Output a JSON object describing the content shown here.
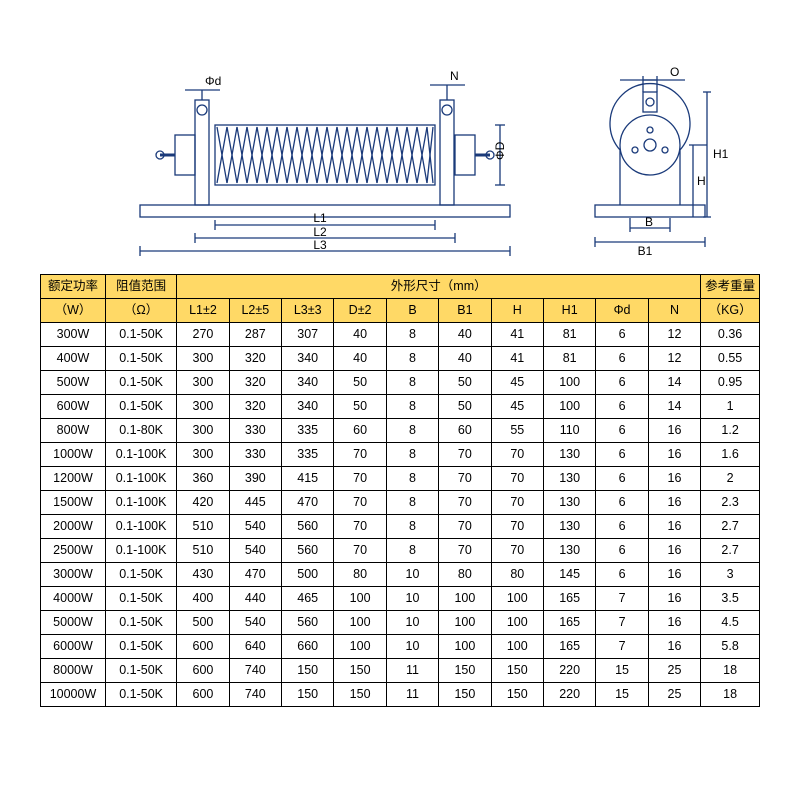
{
  "colors": {
    "header_bg": "#ffd966",
    "border": "#000000",
    "diagram_stroke": "#1a3a7a",
    "text": "#000000"
  },
  "diagram": {
    "labels": {
      "phi_d": "Φd",
      "N": "N",
      "phi_D": "ΦD",
      "L1": "L1",
      "L2": "L2",
      "L3": "L3",
      "O": "O",
      "H1": "H1",
      "H": "H",
      "B": "B",
      "B1": "B1"
    }
  },
  "table": {
    "header": {
      "power_top": "额定功率",
      "power_unit": "（W）",
      "range_top": "阻值范围",
      "range_unit": "（Ω）",
      "dims_title": "外形尺寸（mm）",
      "weight_top": "参考重量",
      "weight_unit": "（KG）",
      "cols": [
        "L1±2",
        "L2±5",
        "L3±3",
        "D±2",
        "B",
        "B1",
        "H",
        "H1",
        "Φd",
        "N"
      ]
    },
    "rows": [
      {
        "p": "300W",
        "r": "0.1-50K",
        "v": [
          "270",
          "287",
          "307",
          "40",
          "8",
          "40",
          "41",
          "81",
          "6",
          "12"
        ],
        "w": "0.36"
      },
      {
        "p": "400W",
        "r": "0.1-50K",
        "v": [
          "300",
          "320",
          "340",
          "40",
          "8",
          "40",
          "41",
          "81",
          "6",
          "12"
        ],
        "w": "0.55"
      },
      {
        "p": "500W",
        "r": "0.1-50K",
        "v": [
          "300",
          "320",
          "340",
          "50",
          "8",
          "50",
          "45",
          "100",
          "6",
          "14"
        ],
        "w": "0.95"
      },
      {
        "p": "600W",
        "r": "0.1-50K",
        "v": [
          "300",
          "320",
          "340",
          "50",
          "8",
          "50",
          "45",
          "100",
          "6",
          "14"
        ],
        "w": "1"
      },
      {
        "p": "800W",
        "r": "0.1-80K",
        "v": [
          "300",
          "330",
          "335",
          "60",
          "8",
          "60",
          "55",
          "110",
          "6",
          "16"
        ],
        "w": "1.2"
      },
      {
        "p": "1000W",
        "r": "0.1-100K",
        "v": [
          "300",
          "330",
          "335",
          "70",
          "8",
          "70",
          "70",
          "130",
          "6",
          "16"
        ],
        "w": "1.6"
      },
      {
        "p": "1200W",
        "r": "0.1-100K",
        "v": [
          "360",
          "390",
          "415",
          "70",
          "8",
          "70",
          "70",
          "130",
          "6",
          "16"
        ],
        "w": "2"
      },
      {
        "p": "1500W",
        "r": "0.1-100K",
        "v": [
          "420",
          "445",
          "470",
          "70",
          "8",
          "70",
          "70",
          "130",
          "6",
          "16"
        ],
        "w": "2.3"
      },
      {
        "p": "2000W",
        "r": "0.1-100K",
        "v": [
          "510",
          "540",
          "560",
          "70",
          "8",
          "70",
          "70",
          "130",
          "6",
          "16"
        ],
        "w": "2.7"
      },
      {
        "p": "2500W",
        "r": "0.1-100K",
        "v": [
          "510",
          "540",
          "560",
          "70",
          "8",
          "70",
          "70",
          "130",
          "6",
          "16"
        ],
        "w": "2.7"
      },
      {
        "p": "3000W",
        "r": "0.1-50K",
        "v": [
          "430",
          "470",
          "500",
          "80",
          "10",
          "80",
          "80",
          "145",
          "6",
          "16"
        ],
        "w": "3"
      },
      {
        "p": "4000W",
        "r": "0.1-50K",
        "v": [
          "400",
          "440",
          "465",
          "100",
          "10",
          "100",
          "100",
          "165",
          "7",
          "16"
        ],
        "w": "3.5"
      },
      {
        "p": "5000W",
        "r": "0.1-50K",
        "v": [
          "500",
          "540",
          "560",
          "100",
          "10",
          "100",
          "100",
          "165",
          "7",
          "16"
        ],
        "w": "4.5"
      },
      {
        "p": "6000W",
        "r": "0.1-50K",
        "v": [
          "600",
          "640",
          "660",
          "100",
          "10",
          "100",
          "100",
          "165",
          "7",
          "16"
        ],
        "w": "5.8"
      },
      {
        "p": "8000W",
        "r": "0.1-50K",
        "v": [
          "600",
          "740",
          "150",
          "150",
          "11",
          "150",
          "150",
          "220",
          "15",
          "25"
        ],
        "w": "18"
      },
      {
        "p": "10000W",
        "r": "0.1-50K",
        "v": [
          "600",
          "740",
          "150",
          "150",
          "11",
          "150",
          "150",
          "220",
          "15",
          "25"
        ],
        "w": "18"
      }
    ]
  }
}
